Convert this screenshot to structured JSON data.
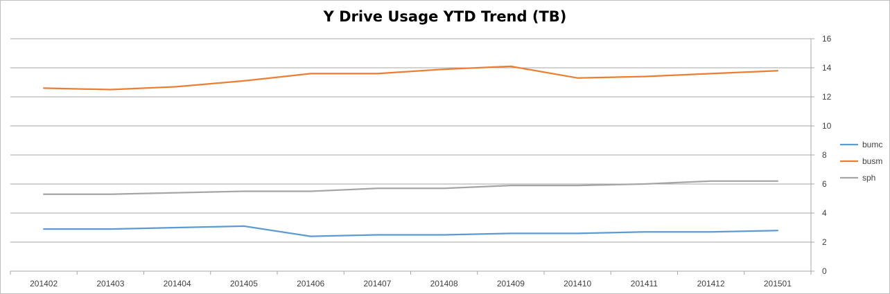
{
  "chart_data": {
    "type": "line",
    "title": "Y Drive Usage YTD Trend (TB)",
    "xlabel": "",
    "ylabel": "",
    "categories": [
      "201402",
      "201403",
      "201404",
      "201405",
      "201406",
      "201407",
      "201408",
      "201409",
      "201410",
      "201411",
      "201412",
      "201501"
    ],
    "ylim": [
      0,
      16
    ],
    "yticks": [
      0,
      2,
      4,
      6,
      8,
      10,
      12,
      14,
      16
    ],
    "y_axis_side": "right",
    "grid": true,
    "legend": "right",
    "series": [
      {
        "name": "bumc",
        "color": "#5b9bd5",
        "values": [
          2.9,
          2.9,
          3.0,
          3.1,
          2.4,
          2.5,
          2.5,
          2.6,
          2.6,
          2.7,
          2.7,
          2.8
        ]
      },
      {
        "name": "busm",
        "color": "#ed7d31",
        "values": [
          12.6,
          12.5,
          12.7,
          13.1,
          13.6,
          13.6,
          13.9,
          14.1,
          13.3,
          13.4,
          13.6,
          13.8
        ]
      },
      {
        "name": "sph",
        "color": "#a5a5a5",
        "values": [
          5.3,
          5.3,
          5.4,
          5.5,
          5.5,
          5.7,
          5.7,
          5.9,
          5.9,
          6.0,
          6.2,
          6.2
        ]
      }
    ]
  }
}
